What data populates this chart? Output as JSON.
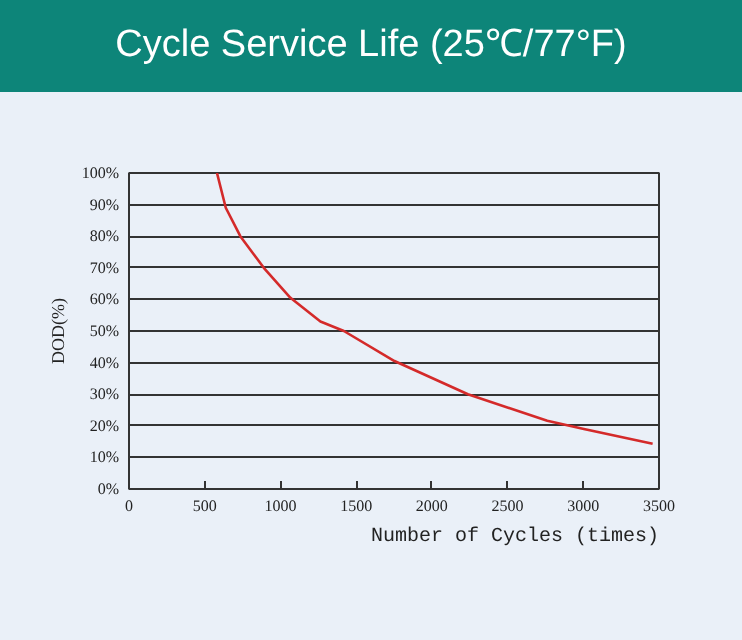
{
  "chart_data": {
    "type": "line",
    "title": "Cycle Service Life (25℃/77°F)",
    "xlabel": "Number of Cycles (times)",
    "ylabel": "DOD(%)",
    "x": [
      581,
      639,
      735,
      890,
      1066,
      1264,
      1419,
      1753,
      2238,
      2762,
      3004,
      3458
    ],
    "series": [
      {
        "color": "#d42a2a",
        "values": [
          100,
          89,
          80,
          70,
          60.5,
          53,
          50,
          40.5,
          30,
          21.6,
          19,
          14.3
        ]
      }
    ],
    "xlim": [
      0,
      3500
    ],
    "ylim": [
      0,
      100
    ],
    "xticks": [
      0,
      500,
      1000,
      1500,
      2000,
      2500,
      3000,
      3500
    ],
    "yticks": [
      {
        "value": 0,
        "label": "0%"
      },
      {
        "value": 10,
        "label": "10%"
      },
      {
        "value": 20,
        "label": "20%"
      },
      {
        "value": 30,
        "label": "30%"
      },
      {
        "value": 40,
        "label": "40%"
      },
      {
        "value": 50,
        "label": "50%"
      },
      {
        "value": 60,
        "label": "60%"
      },
      {
        "value": 70,
        "label": "70%"
      },
      {
        "value": 80,
        "label": "80%"
      },
      {
        "value": 90,
        "label": "90%"
      },
      {
        "value": 100,
        "label": "100%"
      }
    ],
    "grid": "y",
    "line_style": "solid",
    "marker": "none"
  }
}
